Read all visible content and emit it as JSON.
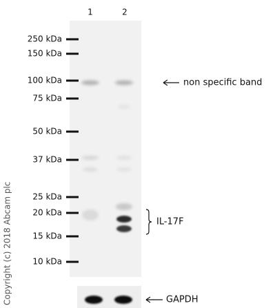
{
  "lanes": [
    "1",
    "2"
  ],
  "markers": [
    "250 kDa",
    "150 kDa",
    "100 kDa",
    "75 kDa",
    "50 kDa",
    "37 kDa",
    "25 kDa",
    "20 kDa",
    "15 kDa",
    "10 kDa"
  ],
  "annotations": {
    "non_specific": "non specific band",
    "target": "IL-17F",
    "loading_control": "GAPDH"
  },
  "copyright": "Copyright (c) 2018 Abcam plc"
}
